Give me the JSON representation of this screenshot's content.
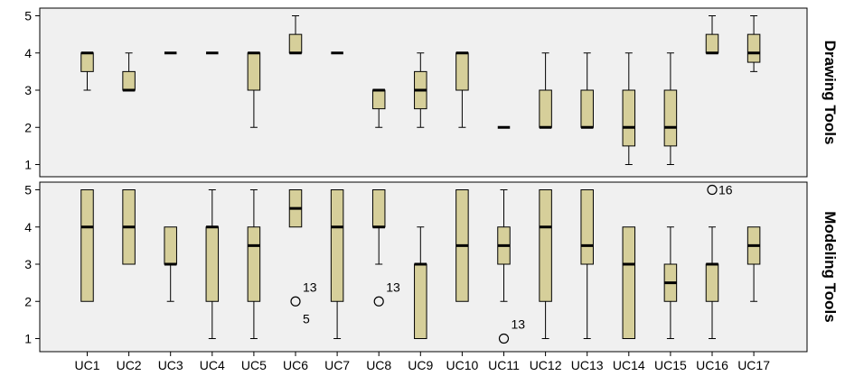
{
  "chart_data": {
    "type": "boxplot",
    "categories": [
      "UC1",
      "UC2",
      "UC3",
      "UC4",
      "UC5",
      "UC6",
      "UC7",
      "UC8",
      "UC9",
      "UC10",
      "UC11",
      "UC12",
      "UC13",
      "UC14",
      "UC15",
      "UC16",
      "UC17"
    ],
    "ylim": [
      0.8,
      5.3
    ],
    "y_ticks": [
      "1",
      "2",
      "3",
      "4",
      "5"
    ],
    "grid": false,
    "box_color": "#d6cf9a",
    "panel_background": "#f0f0f0",
    "panels": [
      {
        "name": "Drawing Tools",
        "boxes": [
          {
            "min": 3,
            "q1": 3.5,
            "median": 4,
            "q3": 4,
            "max": 4
          },
          {
            "min": 3,
            "q1": 3,
            "median": 3,
            "q3": 3.5,
            "max": 4
          },
          {
            "min": 4,
            "q1": 4,
            "median": 4,
            "q3": 4,
            "max": 4
          },
          {
            "min": 4,
            "q1": 4,
            "median": 4,
            "q3": 4,
            "max": 4
          },
          {
            "min": 2,
            "q1": 3,
            "median": 4,
            "q3": 4,
            "max": 4
          },
          {
            "min": 4,
            "q1": 4,
            "median": 4,
            "q3": 4.5,
            "max": 5
          },
          {
            "min": 4,
            "q1": 4,
            "median": 4,
            "q3": 4,
            "max": 4
          },
          {
            "min": 2,
            "q1": 2.5,
            "median": 3,
            "q3": 3,
            "max": 3
          },
          {
            "min": 2,
            "q1": 2.5,
            "median": 3,
            "q3": 3.5,
            "max": 4
          },
          {
            "min": 2,
            "q1": 3,
            "median": 4,
            "q3": 4,
            "max": 4
          },
          {
            "min": 2,
            "q1": 2,
            "median": 2,
            "q3": 2,
            "max": 2
          },
          {
            "min": 2,
            "q1": 2,
            "median": 2,
            "q3": 3,
            "max": 4
          },
          {
            "min": 2,
            "q1": 2,
            "median": 2,
            "q3": 3,
            "max": 4
          },
          {
            "min": 1,
            "q1": 1.5,
            "median": 2,
            "q3": 3,
            "max": 4
          },
          {
            "min": 1,
            "q1": 1.5,
            "median": 2,
            "q3": 3,
            "max": 4
          },
          {
            "min": 4,
            "q1": 4,
            "median": 4,
            "q3": 4.5,
            "max": 5
          },
          {
            "min": 3.5,
            "q1": 3.75,
            "median": 4,
            "q3": 4.5,
            "max": 5
          }
        ],
        "outliers": []
      },
      {
        "name": "Modeling Tools",
        "boxes": [
          {
            "min": 2,
            "q1": 2,
            "median": 4,
            "q3": 5,
            "max": 5
          },
          {
            "min": 3,
            "q1": 3,
            "median": 4,
            "q3": 5,
            "max": 5
          },
          {
            "min": 2,
            "q1": 3,
            "median": 3,
            "q3": 4,
            "max": 4
          },
          {
            "min": 1,
            "q1": 2,
            "median": 4,
            "q3": 4,
            "max": 5
          },
          {
            "min": 1,
            "q1": 2,
            "median": 3.5,
            "q3": 4,
            "max": 5
          },
          {
            "min": 4,
            "q1": 4,
            "median": 4.5,
            "q3": 5,
            "max": 5
          },
          {
            "min": 1,
            "q1": 2,
            "median": 4,
            "q3": 5,
            "max": 5
          },
          {
            "min": 3,
            "q1": 4,
            "median": 4,
            "q3": 5,
            "max": 5
          },
          {
            "min": 1,
            "q1": 1,
            "median": 3,
            "q3": 3,
            "max": 4
          },
          {
            "min": 2,
            "q1": 2,
            "median": 3.5,
            "q3": 5,
            "max": 5
          },
          {
            "min": 2,
            "q1": 3,
            "median": 3.5,
            "q3": 4,
            "max": 5
          },
          {
            "min": 1,
            "q1": 2,
            "median": 4,
            "q3": 5,
            "max": 5
          },
          {
            "min": 1,
            "q1": 3,
            "median": 3.5,
            "q3": 5,
            "max": 5
          },
          {
            "min": 1,
            "q1": 1,
            "median": 3,
            "q3": 4,
            "max": 4
          },
          {
            "min": 1,
            "q1": 2,
            "median": 2.5,
            "q3": 3,
            "max": 4
          },
          {
            "min": 1,
            "q1": 2,
            "median": 3,
            "q3": 3,
            "max": 4
          },
          {
            "min": 2,
            "q1": 3,
            "median": 3.5,
            "q3": 4,
            "max": 4
          }
        ],
        "outliers": [
          {
            "category": "UC6",
            "value": 2,
            "label": "13"
          },
          {
            "category": "UC6",
            "value": 2,
            "label": "5"
          },
          {
            "category": "UC8",
            "value": 2,
            "label": "13"
          },
          {
            "category": "UC11",
            "value": 1,
            "label": "13"
          },
          {
            "category": "UC16",
            "value": 5,
            "label": "16"
          }
        ]
      }
    ]
  }
}
